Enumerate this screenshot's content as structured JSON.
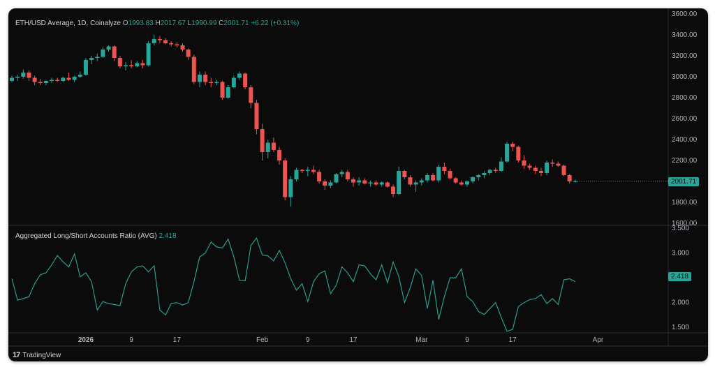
{
  "legend": {
    "title": "ETH/USD Average, 1D, Coinalyze",
    "o_label": "O",
    "o_value": "1993.83",
    "h_label": "H",
    "h_value": "2017.67",
    "l_label": "L",
    "l_value": "1990.99",
    "c_label": "C",
    "c_value": "2001.71",
    "change": "+6.22 (+0.31%)"
  },
  "indicator": {
    "title": "Aggregated Long/Short Accounts Ratio (AVG)",
    "value": "2.418"
  },
  "last_price_tag": "2001.71",
  "last_ratio_tag": "2.418",
  "brand": {
    "logo": "17",
    "name": "TradingView"
  },
  "colors": {
    "up": "#26a69a",
    "down": "#ef5350",
    "ratio_line": "#2a9d8f",
    "background": "#0b0b0b"
  },
  "chart_data": [
    {
      "type": "candlestick",
      "title": "ETH/USD Average, 1D, Coinalyze",
      "ylim": [
        1600,
        3600
      ],
      "y_ticks": [
        "3600.00",
        "3400.00",
        "3200.00",
        "3000.00",
        "2800.00",
        "2600.00",
        "2400.00",
        "2200.00",
        "2000.00",
        "1800.00",
        "1600.00"
      ],
      "x_ticks": [
        "2026",
        "9",
        "17",
        "Feb",
        "9",
        "17",
        "Mar",
        "9",
        "17",
        "Apr"
      ],
      "x_tick_days": [
        0,
        8,
        16,
        31,
        39,
        47,
        59,
        67,
        75,
        90
      ],
      "first_day_offset": -13,
      "ohlc": [
        [
          2960,
          3010,
          2950,
          2990
        ],
        [
          2990,
          3020,
          2960,
          3000
        ],
        [
          3000,
          3070,
          2980,
          3040
        ],
        [
          3040,
          3060,
          2960,
          2990
        ],
        [
          2990,
          3010,
          2920,
          2950
        ],
        [
          2950,
          2980,
          2920,
          2940
        ],
        [
          2940,
          2970,
          2920,
          2960
        ],
        [
          2960,
          2990,
          2940,
          2970
        ],
        [
          2970,
          2990,
          2950,
          2960
        ],
        [
          2960,
          3000,
          2950,
          2990
        ],
        [
          2990,
          3040,
          2960,
          2970
        ],
        [
          2970,
          3010,
          2950,
          3000
        ],
        [
          3000,
          3050,
          2990,
          3020
        ],
        [
          3020,
          3180,
          3010,
          3160
        ],
        [
          3160,
          3200,
          3120,
          3180
        ],
        [
          3180,
          3220,
          3150,
          3190
        ],
        [
          3190,
          3280,
          3180,
          3260
        ],
        [
          3260,
          3300,
          3240,
          3290
        ],
        [
          3290,
          3300,
          3150,
          3180
        ],
        [
          3180,
          3200,
          3080,
          3100
        ],
        [
          3100,
          3140,
          3060,
          3110
        ],
        [
          3110,
          3160,
          3080,
          3100
        ],
        [
          3100,
          3150,
          3090,
          3130
        ],
        [
          3130,
          3160,
          3080,
          3110
        ],
        [
          3110,
          3340,
          3100,
          3320
        ],
        [
          3320,
          3400,
          3300,
          3360
        ],
        [
          3360,
          3390,
          3320,
          3350
        ],
        [
          3350,
          3370,
          3310,
          3320
        ],
        [
          3320,
          3340,
          3290,
          3310
        ],
        [
          3310,
          3330,
          3280,
          3300
        ],
        [
          3300,
          3320,
          3240,
          3260
        ],
        [
          3260,
          3270,
          3160,
          3190
        ],
        [
          3190,
          3210,
          2930,
          2950
        ],
        [
          2950,
          3050,
          2900,
          3020
        ],
        [
          3020,
          3050,
          2920,
          2950
        ],
        [
          2950,
          2990,
          2900,
          2940
        ],
        [
          2940,
          2970,
          2920,
          2950
        ],
        [
          2950,
          2960,
          2780,
          2800
        ],
        [
          2800,
          2920,
          2790,
          2900
        ],
        [
          2900,
          3010,
          2890,
          2990
        ],
        [
          2990,
          3050,
          2970,
          3030
        ],
        [
          3030,
          3040,
          2880,
          2900
        ],
        [
          2900,
          2920,
          2700,
          2750
        ],
        [
          2750,
          2780,
          2450,
          2500
        ],
        [
          2500,
          2550,
          2200,
          2280
        ],
        [
          2280,
          2400,
          2220,
          2370
        ],
        [
          2370,
          2420,
          2280,
          2300
        ],
        [
          2300,
          2330,
          2160,
          2200
        ],
        [
          2200,
          2220,
          1820,
          1850
        ],
        [
          1850,
          2050,
          1760,
          2020
        ],
        [
          2020,
          2130,
          2000,
          2110
        ],
        [
          2110,
          2120,
          2080,
          2100
        ],
        [
          2100,
          2140,
          2050,
          2110
        ],
        [
          2110,
          2150,
          2070,
          2090
        ],
        [
          2090,
          2110,
          1980,
          2000
        ],
        [
          2000,
          2020,
          1920,
          1960
        ],
        [
          1960,
          2010,
          1940,
          1990
        ],
        [
          1990,
          2080,
          1980,
          2070
        ],
        [
          2070,
          2110,
          2040,
          2090
        ],
        [
          2090,
          2110,
          2000,
          2020
        ],
        [
          2020,
          2040,
          1950,
          1990
        ],
        [
          1990,
          2040,
          1960,
          2010
        ],
        [
          2010,
          2030,
          1970,
          1980
        ],
        [
          1980,
          2010,
          1950,
          1990
        ],
        [
          1990,
          2010,
          1960,
          1970
        ],
        [
          1970,
          2000,
          1950,
          1990
        ],
        [
          1990,
          2000,
          1940,
          1950
        ],
        [
          1950,
          1970,
          1850,
          1880
        ],
        [
          1880,
          2140,
          1870,
          2100
        ],
        [
          2100,
          2110,
          2020,
          2040
        ],
        [
          2040,
          2060,
          1950,
          1970
        ],
        [
          1970,
          2010,
          1900,
          1990
        ],
        [
          1990,
          2030,
          1960,
          2010
        ],
        [
          2010,
          2080,
          1990,
          2060
        ],
        [
          2060,
          2080,
          2000,
          2010
        ],
        [
          2010,
          2160,
          1990,
          2140
        ],
        [
          2140,
          2180,
          2070,
          2100
        ],
        [
          2100,
          2120,
          2020,
          2030
        ],
        [
          2030,
          2040,
          1980,
          1990
        ],
        [
          1990,
          2010,
          1960,
          1970
        ],
        [
          1970,
          2010,
          1950,
          2000
        ],
        [
          2000,
          2050,
          1980,
          2040
        ],
        [
          2040,
          2070,
          2010,
          2060
        ],
        [
          2060,
          2100,
          2030,
          2080
        ],
        [
          2080,
          2120,
          2060,
          2110
        ],
        [
          2110,
          2130,
          2080,
          2100
        ],
        [
          2100,
          2230,
          2090,
          2190
        ],
        [
          2190,
          2380,
          2180,
          2360
        ],
        [
          2360,
          2380,
          2290,
          2330
        ],
        [
          2330,
          2340,
          2180,
          2200
        ],
        [
          2200,
          2250,
          2120,
          2150
        ],
        [
          2150,
          2170,
          2110,
          2130
        ],
        [
          2130,
          2150,
          2070,
          2100
        ],
        [
          2100,
          2130,
          2050,
          2080
        ],
        [
          2080,
          2200,
          2060,
          2180
        ],
        [
          2180,
          2210,
          2140,
          2170
        ],
        [
          2170,
          2190,
          2140,
          2150
        ],
        [
          2150,
          2160,
          2050,
          2060
        ],
        [
          2060,
          2070,
          1980,
          2000
        ],
        [
          1994,
          2018,
          1991,
          2002
        ]
      ]
    },
    {
      "type": "line",
      "title": "Aggregated Long/Short Accounts Ratio (AVG)",
      "ylim": [
        1.25,
        3.5
      ],
      "y_ticks": [
        "3.500",
        "3.000",
        "2.500",
        "2.000",
        "1.500"
      ],
      "last_value": 2.418,
      "points": [
        [
          -13,
          2.48
        ],
        [
          -12,
          2.05
        ],
        [
          -11,
          2.08
        ],
        [
          -10,
          2.12
        ],
        [
          -9,
          2.38
        ],
        [
          -8,
          2.56
        ],
        [
          -7,
          2.6
        ],
        [
          -6,
          2.76
        ],
        [
          -5,
          2.95
        ],
        [
          -4,
          2.82
        ],
        [
          -3,
          2.72
        ],
        [
          -2,
          2.98
        ],
        [
          -1,
          2.52
        ],
        [
          0,
          2.6
        ],
        [
          1,
          2.42
        ],
        [
          2,
          1.85
        ],
        [
          3,
          2.02
        ],
        [
          4,
          1.98
        ],
        [
          5,
          1.96
        ],
        [
          6,
          1.94
        ],
        [
          7,
          2.38
        ],
        [
          8,
          2.62
        ],
        [
          9,
          2.72
        ],
        [
          10,
          2.74
        ],
        [
          11,
          2.62
        ],
        [
          12,
          2.74
        ],
        [
          13,
          1.85
        ],
        [
          14,
          1.75
        ],
        [
          15,
          1.98
        ],
        [
          16,
          2.0
        ],
        [
          17,
          1.95
        ],
        [
          18,
          2.0
        ],
        [
          19,
          2.42
        ],
        [
          20,
          2.92
        ],
        [
          21,
          3.0
        ],
        [
          22,
          3.22
        ],
        [
          23,
          3.12
        ],
        [
          24,
          3.1
        ],
        [
          25,
          3.28
        ],
        [
          26,
          2.92
        ],
        [
          27,
          2.45
        ],
        [
          28,
          2.44
        ],
        [
          29,
          3.15
        ],
        [
          30,
          3.3
        ],
        [
          31,
          2.96
        ],
        [
          32,
          2.94
        ],
        [
          33,
          2.84
        ],
        [
          34,
          3.05
        ],
        [
          35,
          2.8
        ],
        [
          36,
          2.48
        ],
        [
          37,
          2.25
        ],
        [
          38,
          2.38
        ],
        [
          39,
          2.02
        ],
        [
          40,
          2.42
        ],
        [
          41,
          2.58
        ],
        [
          42,
          2.64
        ],
        [
          43,
          2.18
        ],
        [
          44,
          2.35
        ],
        [
          45,
          2.72
        ],
        [
          46,
          2.6
        ],
        [
          47,
          2.42
        ],
        [
          48,
          2.76
        ],
        [
          49,
          2.74
        ],
        [
          50,
          2.58
        ],
        [
          51,
          2.46
        ],
        [
          52,
          2.76
        ],
        [
          53,
          2.4
        ],
        [
          54,
          2.82
        ],
        [
          55,
          2.52
        ],
        [
          56,
          2.0
        ],
        [
          57,
          2.3
        ],
        [
          58,
          2.68
        ],
        [
          59,
          2.55
        ],
        [
          60,
          1.88
        ],
        [
          61,
          2.45
        ],
        [
          62,
          1.66
        ],
        [
          63,
          2.12
        ],
        [
          64,
          2.5
        ],
        [
          65,
          2.5
        ],
        [
          66,
          2.68
        ],
        [
          67,
          2.12
        ],
        [
          68,
          2.02
        ],
        [
          69,
          1.82
        ],
        [
          70,
          1.76
        ],
        [
          71,
          1.88
        ],
        [
          72,
          2.0
        ],
        [
          73,
          1.7
        ],
        [
          74,
          1.42
        ],
        [
          75,
          1.46
        ],
        [
          76,
          1.92
        ],
        [
          77,
          2.0
        ],
        [
          78,
          2.06
        ],
        [
          79,
          2.08
        ],
        [
          80,
          2.16
        ],
        [
          81,
          1.98
        ],
        [
          82,
          2.08
        ],
        [
          83,
          1.96
        ],
        [
          84,
          2.46
        ],
        [
          85,
          2.48
        ],
        [
          86,
          2.42
        ]
      ]
    }
  ]
}
